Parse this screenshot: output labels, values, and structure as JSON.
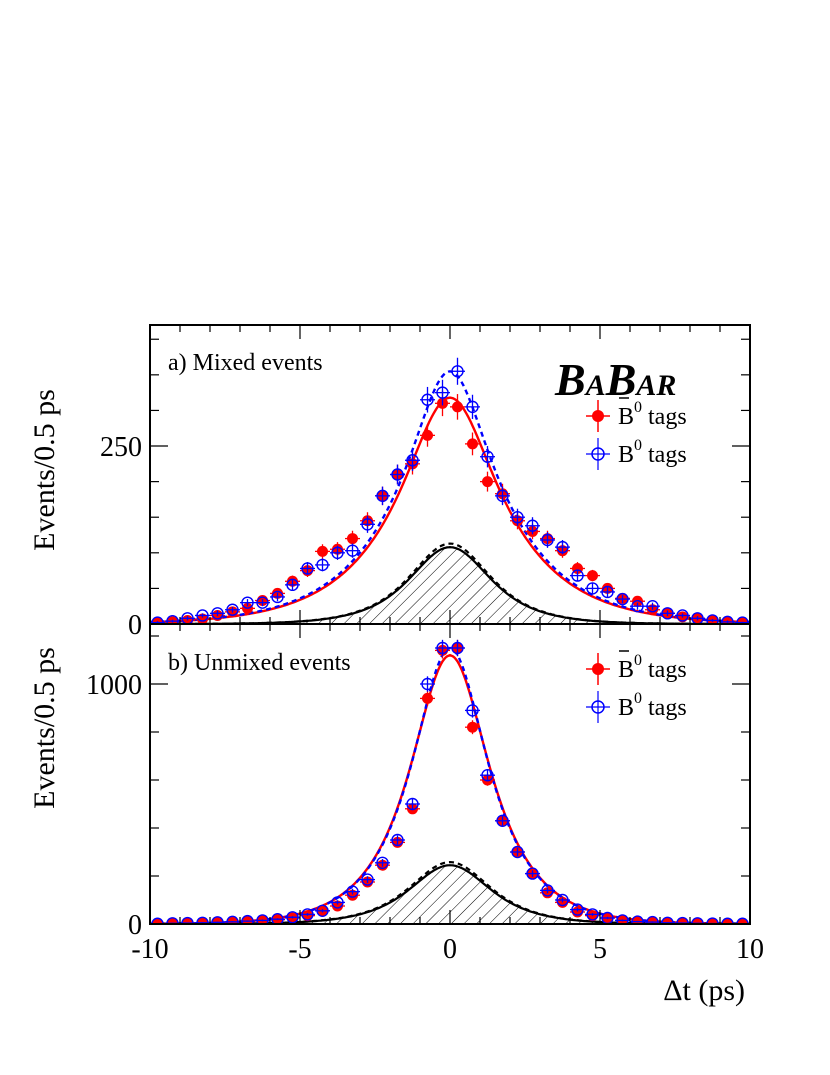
{
  "chart_data": [
    {
      "type": "scatter",
      "panel": "a",
      "annotation": "a) Mixed events",
      "logo": {
        "first": "B",
        "second": "A",
        "third": "B",
        "fourth": "A",
        "fifth": "R"
      },
      "xlabel": "",
      "ylabel": "Events/0.5 ps",
      "xlim": [
        -10,
        10
      ],
      "ylim": [
        0,
        420
      ],
      "yticks": [
        0,
        250
      ],
      "grid": false,
      "legend": "top-right",
      "legend_entries": [
        {
          "label_prefix": "B",
          "label_sup": "0",
          "label_suffix": " tags",
          "bar": true,
          "marker": "filled-circle"
        },
        {
          "label_prefix": "B",
          "label_sup": "0",
          "label_suffix": " tags",
          "bar": false,
          "marker": "open-circle-cross"
        }
      ],
      "x": [
        -9.75,
        -9.25,
        -8.75,
        -8.25,
        -7.75,
        -7.25,
        -6.75,
        -6.25,
        -5.75,
        -5.25,
        -4.75,
        -4.25,
        -3.75,
        -3.25,
        -2.75,
        -2.25,
        -1.75,
        -1.25,
        -0.75,
        -0.25,
        0.25,
        0.75,
        1.25,
        1.75,
        2.25,
        2.75,
        3.25,
        3.75,
        4.25,
        4.75,
        5.25,
        5.75,
        6.25,
        6.75,
        7.25,
        7.75,
        8.25,
        8.75,
        9.25,
        9.75
      ],
      "series": [
        {
          "color": "#ff0000",
          "values": [
            2,
            3,
            5,
            7,
            12,
            17,
            22,
            33,
            43,
            60,
            75,
            102,
            105,
            120,
            145,
            180,
            210,
            225,
            265,
            310,
            305,
            253,
            200,
            183,
            145,
            130,
            120,
            103,
            78,
            68,
            50,
            36,
            32,
            20,
            15,
            10,
            8,
            5,
            3,
            2
          ],
          "errors": [
            2,
            2,
            2,
            3,
            3,
            4,
            5,
            6,
            7,
            8,
            9,
            10,
            10,
            11,
            12,
            13,
            14,
            15,
            16,
            18,
            18,
            16,
            14,
            14,
            12,
            11,
            11,
            10,
            9,
            8,
            7,
            6,
            6,
            5,
            4,
            3,
            3,
            2,
            2,
            1
          ]
        },
        {
          "color": "#0000ff",
          "values": [
            2,
            4,
            8,
            12,
            15,
            20,
            30,
            30,
            38,
            55,
            78,
            83,
            100,
            103,
            140,
            180,
            210,
            230,
            315,
            325,
            355,
            305,
            235,
            180,
            150,
            138,
            118,
            108,
            68,
            50,
            45,
            35,
            25,
            25,
            15,
            12,
            8,
            5,
            3,
            2
          ],
          "errors": [
            2,
            2,
            3,
            3,
            4,
            4,
            5,
            5,
            6,
            7,
            9,
            9,
            10,
            10,
            12,
            13,
            14,
            15,
            18,
            18,
            19,
            17,
            15,
            13,
            12,
            12,
            11,
            10,
            8,
            7,
            7,
            6,
            5,
            5,
            4,
            3,
            3,
            2,
            2,
            1
          ]
        }
      ],
      "curves": [
        {
          "color": "#ff0000",
          "style": "solid",
          "peak": 318,
          "tau": 1.95,
          "sigma": 0.7
        },
        {
          "color": "#0000ff",
          "style": "dashed",
          "peak": 355,
          "tau": 1.95,
          "sigma": 0.6
        },
        {
          "color": "#000000",
          "style": "solid",
          "peak": 108,
          "tau": 1.25,
          "sigma": 0.75,
          "hatched": true
        },
        {
          "color": "#000000",
          "style": "dashed",
          "peak": 113,
          "tau": 1.25,
          "sigma": 0.75
        }
      ]
    },
    {
      "type": "scatter",
      "panel": "b",
      "annotation": "b) Unmixed events",
      "xlabel": "Δt (ps)",
      "ylabel": "Events/0.5 ps",
      "xlim": [
        -10,
        10
      ],
      "ylim": [
        0,
        1250
      ],
      "yticks": [
        0,
        1000
      ],
      "xticks": [
        -10,
        -5,
        0,
        5,
        10
      ],
      "grid": false,
      "legend": "top-right",
      "legend_entries": [
        {
          "label_prefix": "B",
          "label_sup": "0",
          "label_suffix": " tags",
          "bar": true,
          "marker": "filled-circle"
        },
        {
          "label_prefix": "B",
          "label_sup": "0",
          "label_suffix": " tags",
          "bar": false,
          "marker": "open-circle-cross"
        }
      ],
      "x": [
        -9.75,
        -9.25,
        -8.75,
        -8.25,
        -7.75,
        -7.25,
        -6.75,
        -6.25,
        -5.75,
        -5.25,
        -4.75,
        -4.25,
        -3.75,
        -3.25,
        -2.75,
        -2.25,
        -1.75,
        -1.25,
        -0.75,
        -0.25,
        0.25,
        0.75,
        1.25,
        1.75,
        2.25,
        2.75,
        3.25,
        3.75,
        4.25,
        4.75,
        5.25,
        5.75,
        6.25,
        6.75,
        7.25,
        7.75,
        8.25,
        8.75,
        9.25,
        9.75
      ],
      "series": [
        {
          "color": "#ff0000",
          "values": [
            1,
            2,
            3,
            4,
            5,
            7,
            10,
            13,
            18,
            25,
            35,
            55,
            75,
            120,
            175,
            245,
            340,
            480,
            940,
            1140,
            1150,
            820,
            600,
            430,
            300,
            210,
            130,
            90,
            50,
            35,
            25,
            15,
            10,
            7,
            5,
            4,
            3,
            2,
            1,
            1
          ],
          "errors": [
            1,
            1,
            2,
            2,
            2,
            3,
            3,
            4,
            4,
            5,
            6,
            8,
            9,
            11,
            13,
            16,
            18,
            22,
            31,
            34,
            34,
            29,
            24,
            21,
            17,
            14,
            11,
            9,
            7,
            6,
            5,
            4,
            3,
            3,
            2,
            2,
            2,
            1,
            1,
            1
          ]
        },
        {
          "color": "#0000ff",
          "values": [
            1,
            3,
            4,
            5,
            7,
            9,
            12,
            15,
            20,
            28,
            40,
            55,
            90,
            135,
            185,
            255,
            350,
            500,
            1000,
            1150,
            1150,
            890,
            620,
            430,
            300,
            210,
            140,
            100,
            60,
            40,
            25,
            15,
            10,
            8,
            5,
            4,
            3,
            2,
            1,
            1
          ],
          "errors": [
            1,
            2,
            2,
            2,
            3,
            3,
            3,
            4,
            4,
            5,
            6,
            7,
            9,
            12,
            14,
            16,
            19,
            22,
            32,
            34,
            34,
            30,
            25,
            21,
            17,
            14,
            12,
            10,
            8,
            6,
            5,
            4,
            3,
            3,
            2,
            2,
            2,
            1,
            1,
            1
          ]
        }
      ],
      "curves": [
        {
          "color": "#ff0000",
          "style": "solid",
          "peak": 1120,
          "tau": 1.35,
          "sigma": 0.65
        },
        {
          "color": "#0000ff",
          "style": "dashed",
          "peak": 1150,
          "tau": 1.35,
          "sigma": 0.6
        },
        {
          "color": "#000000",
          "style": "solid",
          "peak": 245,
          "tau": 1.25,
          "sigma": 0.75,
          "hatched": true
        },
        {
          "color": "#000000",
          "style": "dashed",
          "peak": 258,
          "tau": 1.25,
          "sigma": 0.75
        }
      ]
    }
  ]
}
